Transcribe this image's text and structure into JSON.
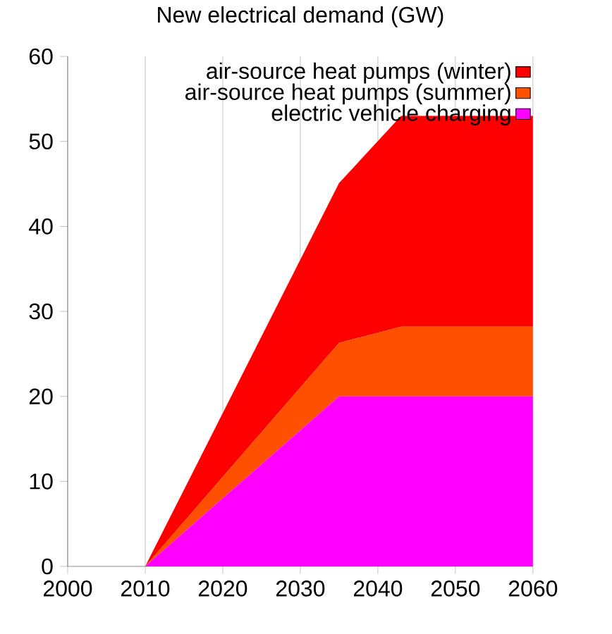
{
  "chart_data": {
    "type": "area",
    "title": "New electrical demand (GW)",
    "stacked": true,
    "xlim": [
      2000,
      2060
    ],
    "xticks": [
      2000,
      2010,
      2020,
      2030,
      2040,
      2050,
      2060
    ],
    "ylim": [
      0,
      60
    ],
    "yticks": [
      0,
      10,
      20,
      30,
      40,
      50,
      60
    ],
    "grid": "x",
    "legend": "top right",
    "series": [
      {
        "name": "electric vehicle charging",
        "color": "#ff00ff",
        "x": [
          2010,
          2035,
          2043,
          2060
        ],
        "values": [
          0,
          20,
          20,
          20
        ]
      },
      {
        "name": "air-source heat pumps (summer)",
        "color": "#ff5000",
        "x": [
          2010,
          2035,
          2043,
          2060
        ],
        "values": [
          0,
          6.3,
          8.2,
          8.2
        ]
      },
      {
        "name": "air-source heat pumps (winter)",
        "color": "#ff0000",
        "x": [
          2010,
          2035,
          2043,
          2060
        ],
        "values": [
          0,
          18.8,
          24.8,
          24.8
        ]
      }
    ]
  }
}
